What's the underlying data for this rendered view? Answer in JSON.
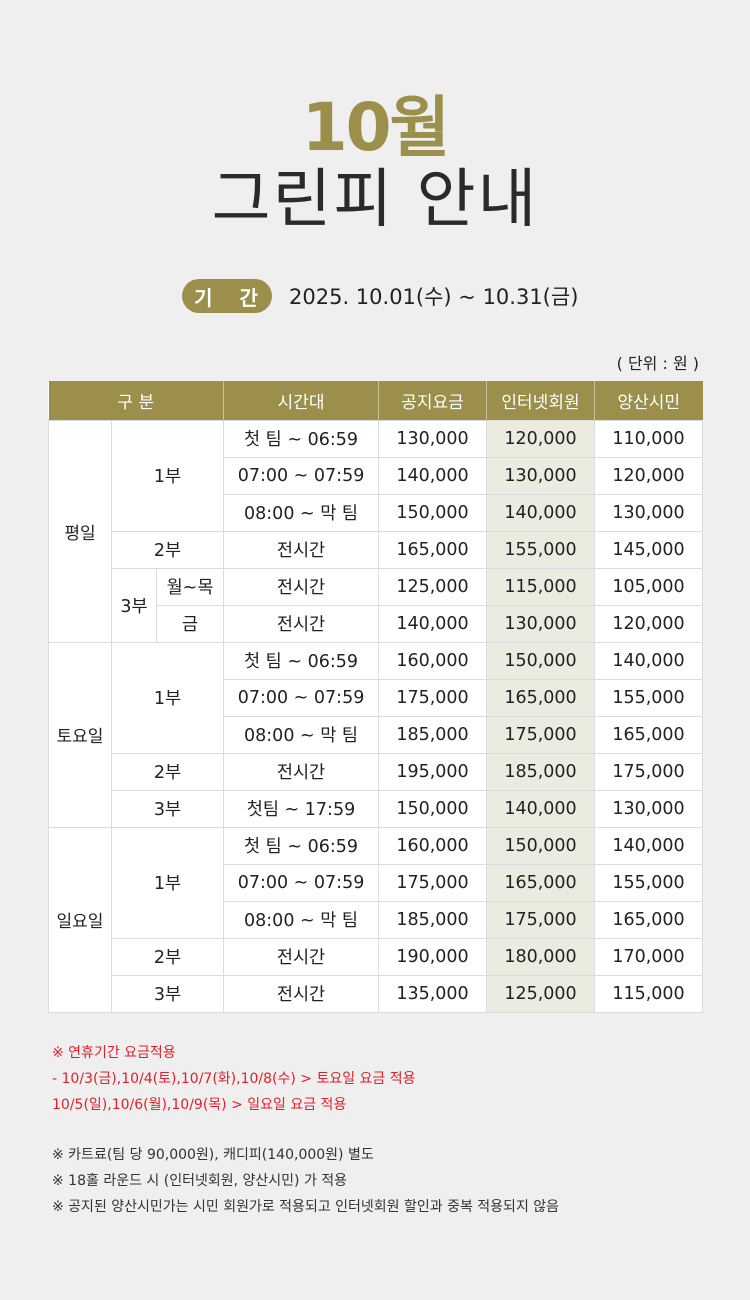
{
  "header": {
    "month": "10월",
    "title": "그린피 안내"
  },
  "period": {
    "badge": "기 간",
    "range": "2025. 10.01(수) ~ 10.31(금)"
  },
  "unit": "( 단위 : 원 )",
  "table": {
    "headers": [
      "구 분",
      "시간대",
      "공지요금",
      "인터넷회원",
      "양산시민"
    ],
    "weekday": {
      "label": "평일",
      "part1": "1부",
      "part2": "2부",
      "part3": "3부",
      "sub_mon_thu": "월~목",
      "sub_fri": "금",
      "rows": [
        {
          "time": "첫 팀 ~ 06:59",
          "notice": "130,000",
          "member": "120,000",
          "citizen": "110,000"
        },
        {
          "time": "07:00 ~ 07:59",
          "notice": "140,000",
          "member": "130,000",
          "citizen": "120,000"
        },
        {
          "time": "08:00 ~ 막 팀",
          "notice": "150,000",
          "member": "140,000",
          "citizen": "130,000"
        },
        {
          "time": "전시간",
          "notice": "165,000",
          "member": "155,000",
          "citizen": "145,000"
        },
        {
          "time": "전시간",
          "notice": "125,000",
          "member": "115,000",
          "citizen": "105,000"
        },
        {
          "time": "전시간",
          "notice": "140,000",
          "member": "130,000",
          "citizen": "120,000"
        }
      ]
    },
    "saturday": {
      "label": "토요일",
      "part1": "1부",
      "part2": "2부",
      "part3": "3부",
      "rows": [
        {
          "time": "첫 팀 ~ 06:59",
          "notice": "160,000",
          "member": "150,000",
          "citizen": "140,000"
        },
        {
          "time": "07:00 ~ 07:59",
          "notice": "175,000",
          "member": "165,000",
          "citizen": "155,000"
        },
        {
          "time": "08:00 ~ 막 팀",
          "notice": "185,000",
          "member": "175,000",
          "citizen": "165,000"
        },
        {
          "time": "전시간",
          "notice": "195,000",
          "member": "185,000",
          "citizen": "175,000"
        },
        {
          "time": "첫팀 ~ 17:59",
          "notice": "150,000",
          "member": "140,000",
          "citizen": "130,000"
        }
      ]
    },
    "sunday": {
      "label": "일요일",
      "part1": "1부",
      "part2": "2부",
      "part3": "3부",
      "rows": [
        {
          "time": "첫 팀 ~ 06:59",
          "notice": "160,000",
          "member": "150,000",
          "citizen": "140,000"
        },
        {
          "time": "07:00 ~ 07:59",
          "notice": "175,000",
          "member": "165,000",
          "citizen": "155,000"
        },
        {
          "time": "08:00 ~ 막 팀",
          "notice": "185,000",
          "member": "175,000",
          "citizen": "165,000"
        },
        {
          "time": "전시간",
          "notice": "190,000",
          "member": "180,000",
          "citizen": "170,000"
        },
        {
          "time": "전시간",
          "notice": "135,000",
          "member": "125,000",
          "citizen": "115,000"
        }
      ]
    }
  },
  "notes": {
    "holiday_title": "※ 연휴기간 요금적용",
    "holiday_sat": "- 10/3(금),10/4(토),10/7(화),10/8(수) > 토요일 요금 적용",
    "holiday_sun": "10/5(일),10/6(월),10/9(목) > 일요일 요금 적용",
    "note1": "※ 카트료(팀 당 90,000원), 캐디피(140,000원) 별도",
    "note2": "※ 18홀 라운드 시 (인터넷회원, 양산시민) 가 적용",
    "note3": "※ 공지된 양산시민가는 시민 회원가로 적용되고 인터넷회원 할인과 중복 적용되지 않음"
  },
  "colors": {
    "accent": "#9b8f4b",
    "member_bg": "#ecebe0",
    "saturday": "#2257c8",
    "sunday": "#d4161e",
    "note_red": "#e0202a"
  }
}
